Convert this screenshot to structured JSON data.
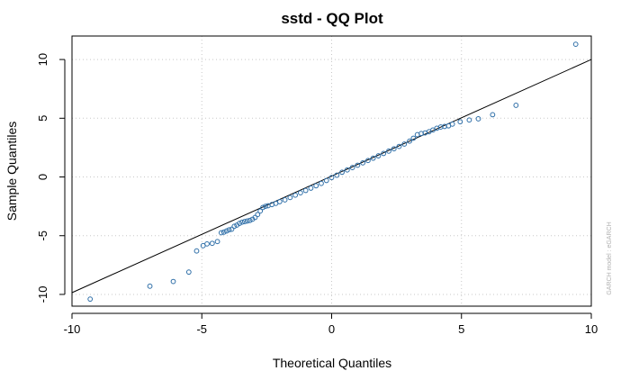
{
  "chart_data": {
    "type": "scatter",
    "title": "sstd - QQ Plot",
    "xlabel": "Theoretical Quantiles",
    "ylabel": "Sample Quantiles",
    "watermark": "GARCH model : eGARCH",
    "xlim": [
      -10,
      10
    ],
    "ylim": [
      -11,
      12
    ],
    "xticks": [
      -10,
      -5,
      0,
      5,
      10
    ],
    "yticks": [
      -10,
      -5,
      0,
      5,
      10
    ],
    "grid": true,
    "point_color": "#2f6fa8",
    "reference_line": {
      "from": [
        -10,
        -9.85
      ],
      "to": [
        10,
        10
      ]
    },
    "series": [
      {
        "points": [
          [
            -9.3,
            -10.4
          ],
          [
            -7.0,
            -9.3
          ],
          [
            -6.1,
            -8.9
          ],
          [
            -5.5,
            -8.1
          ],
          [
            -5.2,
            -6.3
          ],
          [
            -4.95,
            -5.85
          ],
          [
            -4.8,
            -5.7
          ],
          [
            -4.6,
            -5.65
          ],
          [
            -4.4,
            -5.5
          ],
          [
            -4.25,
            -4.75
          ],
          [
            -4.15,
            -4.7
          ],
          [
            -4.05,
            -4.6
          ],
          [
            -3.95,
            -4.5
          ],
          [
            -3.85,
            -4.45
          ],
          [
            -3.75,
            -4.2
          ],
          [
            -3.65,
            -4.1
          ],
          [
            -3.55,
            -3.95
          ],
          [
            -3.45,
            -3.85
          ],
          [
            -3.35,
            -3.8
          ],
          [
            -3.25,
            -3.75
          ],
          [
            -3.15,
            -3.7
          ],
          [
            -3.05,
            -3.6
          ],
          [
            -2.95,
            -3.45
          ],
          [
            -2.85,
            -3.2
          ],
          [
            -2.75,
            -2.9
          ],
          [
            -2.65,
            -2.6
          ],
          [
            -2.55,
            -2.5
          ],
          [
            -2.45,
            -2.45
          ],
          [
            -2.3,
            -2.35
          ],
          [
            -2.15,
            -2.25
          ],
          [
            -2.0,
            -2.1
          ],
          [
            -1.8,
            -1.95
          ],
          [
            -1.6,
            -1.75
          ],
          [
            -1.4,
            -1.55
          ],
          [
            -1.2,
            -1.35
          ],
          [
            -1.0,
            -1.15
          ],
          [
            -0.8,
            -0.95
          ],
          [
            -0.6,
            -0.75
          ],
          [
            -0.4,
            -0.55
          ],
          [
            -0.2,
            -0.3
          ],
          [
            0.0,
            -0.05
          ],
          [
            0.2,
            0.15
          ],
          [
            0.4,
            0.4
          ],
          [
            0.6,
            0.6
          ],
          [
            0.8,
            0.8
          ],
          [
            1.0,
            1.0
          ],
          [
            1.2,
            1.2
          ],
          [
            1.4,
            1.4
          ],
          [
            1.6,
            1.6
          ],
          [
            1.8,
            1.8
          ],
          [
            2.0,
            2.0
          ],
          [
            2.2,
            2.2
          ],
          [
            2.4,
            2.4
          ],
          [
            2.6,
            2.6
          ],
          [
            2.8,
            2.8
          ],
          [
            3.0,
            3.05
          ],
          [
            3.15,
            3.3
          ],
          [
            3.3,
            3.6
          ],
          [
            3.45,
            3.7
          ],
          [
            3.6,
            3.75
          ],
          [
            3.75,
            3.85
          ],
          [
            3.9,
            4.0
          ],
          [
            4.05,
            4.15
          ],
          [
            4.2,
            4.25
          ],
          [
            4.35,
            4.3
          ],
          [
            4.5,
            4.35
          ],
          [
            4.65,
            4.5
          ],
          [
            4.95,
            4.7
          ],
          [
            5.3,
            4.85
          ],
          [
            5.65,
            4.95
          ],
          [
            6.2,
            5.3
          ],
          [
            7.1,
            6.1
          ],
          [
            9.4,
            11.3
          ]
        ]
      }
    ]
  }
}
